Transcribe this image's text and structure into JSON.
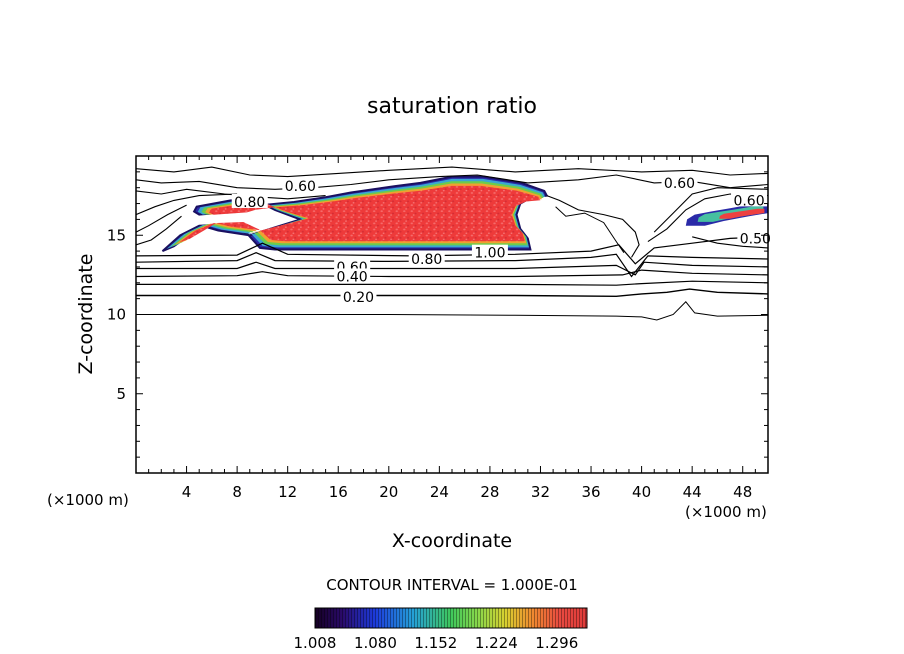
{
  "chart_data": {
    "type": "heatmap",
    "title": "saturation ratio",
    "xlabel": "X-coordinate",
    "ylabel": "Z-coordinate",
    "x_unit_label": "(×1000 m)",
    "x_unit_label_right": "(×1000 m)",
    "xlim": [
      0,
      50
    ],
    "ylim": [
      0,
      20
    ],
    "x_ticks": [
      4,
      8,
      12,
      16,
      20,
      24,
      28,
      32,
      36,
      40,
      44,
      48
    ],
    "y_ticks": [
      5,
      10,
      15
    ],
    "contour_interval_text": "CONTOUR INTERVAL = 1.000E-01",
    "contour_labels": [
      {
        "text": "0.60",
        "x": 13.0,
        "z": 18.1
      },
      {
        "text": "0.60",
        "x": 43.0,
        "z": 18.3
      },
      {
        "text": "0.80",
        "x": 9.0,
        "z": 17.1
      },
      {
        "text": "0.60",
        "x": 48.5,
        "z": 17.2
      },
      {
        "text": "0.50",
        "x": 49.0,
        "z": 14.8
      },
      {
        "text": "1.00",
        "x": 28.0,
        "z": 13.9
      },
      {
        "text": "0.80",
        "x": 23.0,
        "z": 13.5
      },
      {
        "text": "0.60",
        "x": 17.1,
        "z": 13.0
      },
      {
        "text": "0.40",
        "x": 17.1,
        "z": 12.4
      },
      {
        "text": "0.20",
        "x": 17.6,
        "z": 11.1
      }
    ],
    "colorbar": {
      "ticks": [
        "1.008",
        "1.080",
        "1.152",
        "1.224",
        "1.296"
      ],
      "min": 1.008,
      "max": 1.332
    },
    "supersaturated_regions": [
      {
        "name": "main",
        "x": [
          2.2,
          31.5
        ],
        "z": [
          14.0,
          18.8
        ]
      },
      {
        "name": "right",
        "x": [
          43.5,
          50.0
        ],
        "z": [
          15.5,
          17.0
        ]
      }
    ]
  }
}
